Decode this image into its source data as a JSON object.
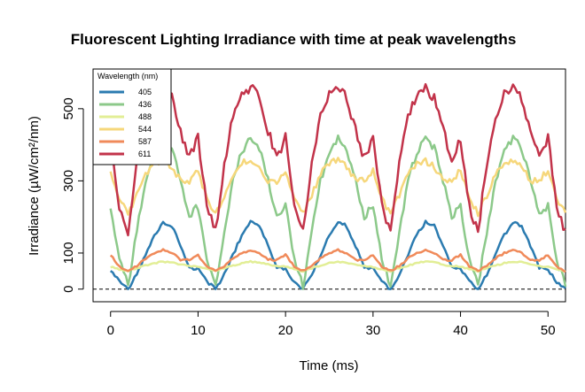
{
  "chart_data": {
    "type": "line",
    "title": "Fluorescent Lighting Irradiance with time at peak wavelengths",
    "xlabel": "Time (ms)",
    "ylabel": "Irradiance (µW/cm²/nm)",
    "xlim": [
      -2,
      52
    ],
    "ylim": [
      -35,
      610
    ],
    "xticks": [
      "0",
      "10",
      "20",
      "30",
      "40",
      "50"
    ],
    "yticks": [
      "0",
      "100",
      "300",
      "500"
    ],
    "reference_line": {
      "y": 0,
      "style": "dashed"
    },
    "legend": {
      "title": "Wavelength (nm)",
      "position": "top-left"
    },
    "period_ms": 10,
    "series": [
      {
        "name": "405",
        "color": "#2b7bb0",
        "x": [
          0,
          1,
          2,
          3,
          4,
          5,
          6,
          7,
          8,
          9,
          10
        ],
        "y": [
          55,
          20,
          0,
          40,
          95,
          150,
          185,
          175,
          120,
          60,
          55
        ]
      },
      {
        "name": "436",
        "color": "#8cc98a",
        "x": [
          0,
          1,
          2,
          3,
          4,
          5,
          6,
          7,
          8,
          9,
          10
        ],
        "y": [
          230,
          80,
          10,
          160,
          300,
          380,
          420,
          390,
          300,
          200,
          230
        ]
      },
      {
        "name": "488",
        "color": "#e2ee96",
        "x": [
          0,
          1,
          2,
          3,
          4,
          5,
          6,
          7,
          8,
          9,
          10
        ],
        "y": [
          62,
          55,
          50,
          58,
          65,
          72,
          76,
          74,
          68,
          64,
          62
        ]
      },
      {
        "name": "544",
        "color": "#f6d77b",
        "x": [
          0,
          1,
          2,
          3,
          4,
          5,
          6,
          7,
          8,
          9,
          10
        ],
        "y": [
          330,
          250,
          210,
          260,
          320,
          350,
          355,
          340,
          300,
          300,
          330
        ]
      },
      {
        "name": "587",
        "color": "#f08a5a",
        "x": [
          0,
          1,
          2,
          3,
          4,
          5,
          6,
          7,
          8,
          9,
          10
        ],
        "y": [
          95,
          62,
          50,
          65,
          85,
          100,
          108,
          100,
          82,
          80,
          95
        ]
      },
      {
        "name": "611",
        "color": "#c2334a",
        "x": [
          0,
          1,
          2,
          3,
          4,
          5,
          6,
          7,
          8,
          9,
          10
        ],
        "y": [
          420,
          230,
          160,
          350,
          480,
          540,
          560,
          530,
          440,
          360,
          420
        ]
      }
    ]
  }
}
